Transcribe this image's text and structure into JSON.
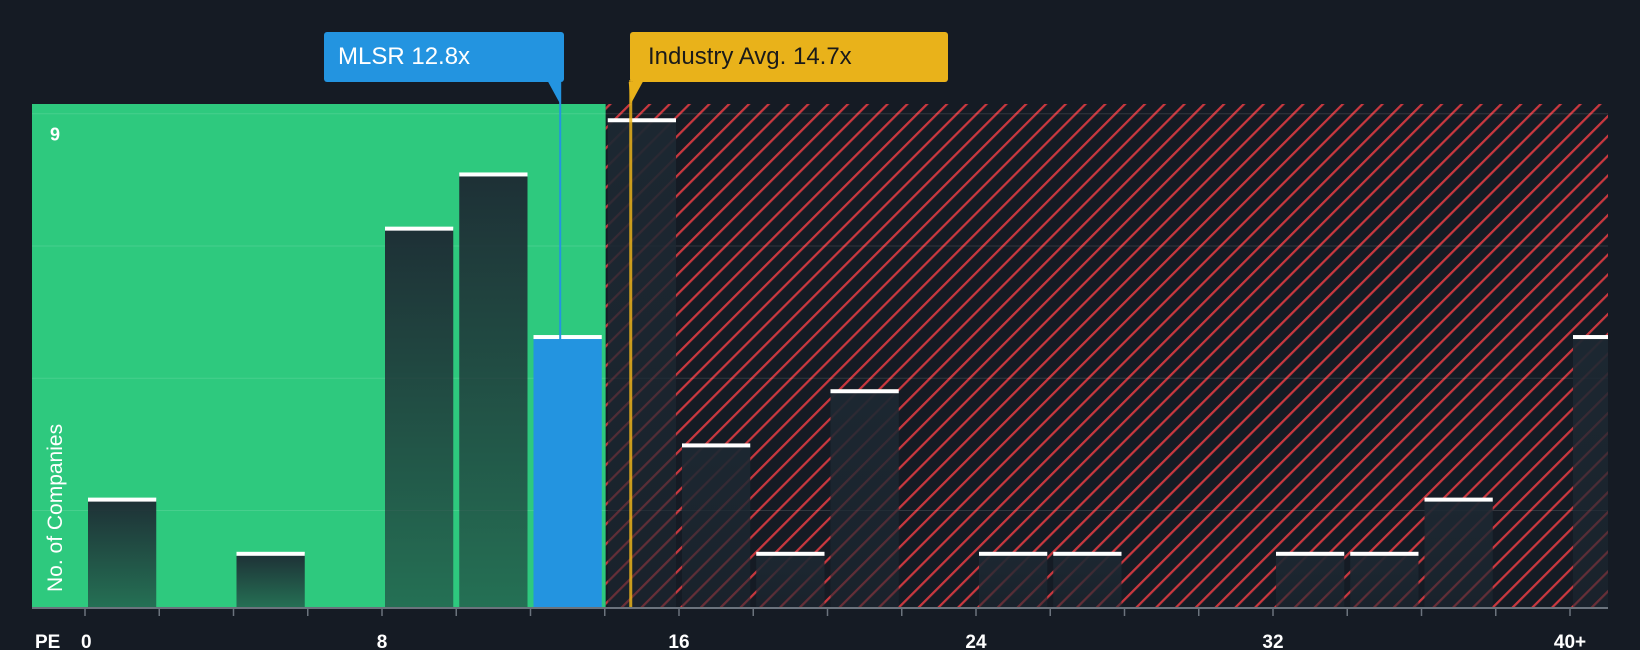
{
  "chart_data": {
    "type": "bar",
    "xlabel": "PE",
    "ylabel": "No. of Companies",
    "bins": [
      {
        "start": 0,
        "end": 2,
        "count": 2
      },
      {
        "start": 2,
        "end": 4,
        "count": 0
      },
      {
        "start": 4,
        "end": 6,
        "count": 1
      },
      {
        "start": 6,
        "end": 8,
        "count": 0
      },
      {
        "start": 8,
        "end": 10,
        "count": 7
      },
      {
        "start": 10,
        "end": 12,
        "count": 8
      },
      {
        "start": 12,
        "end": 14,
        "count": 5
      },
      {
        "start": 14,
        "end": 16,
        "count": 9
      },
      {
        "start": 16,
        "end": 18,
        "count": 3
      },
      {
        "start": 18,
        "end": 20,
        "count": 1
      },
      {
        "start": 20,
        "end": 22,
        "count": 4
      },
      {
        "start": 22,
        "end": 24,
        "count": 0
      },
      {
        "start": 24,
        "end": 26,
        "count": 1
      },
      {
        "start": 26,
        "end": 28,
        "count": 1
      },
      {
        "start": 28,
        "end": 30,
        "count": 0
      },
      {
        "start": 30,
        "end": 32,
        "count": 0
      },
      {
        "start": 32,
        "end": 34,
        "count": 1
      },
      {
        "start": 34,
        "end": 36,
        "count": 1
      },
      {
        "start": 36,
        "end": 38,
        "count": 2
      },
      {
        "start": 38,
        "end": 40,
        "count": 0
      },
      {
        "start": 40,
        "end": 42,
        "count": 5
      }
    ],
    "x_ticks": [
      {
        "value": 0,
        "label": "0"
      },
      {
        "value": 8,
        "label": "8"
      },
      {
        "value": 16,
        "label": "16"
      },
      {
        "value": 24,
        "label": "24"
      },
      {
        "value": 32,
        "label": "32"
      },
      {
        "value": 40,
        "label": "40+"
      }
    ],
    "y_ticks": [
      {
        "value": 9,
        "label": "9"
      }
    ],
    "xlim": [
      0,
      41
    ],
    "ylim": [
      0,
      9.3
    ],
    "company": {
      "label": "MLSR 12.8x",
      "value": 12.8,
      "bin_index": 6,
      "color": "#2394e0"
    },
    "industry_avg": {
      "label": "Industry Avg. 14.7x",
      "value": 14.7,
      "color": "#e9b21a"
    },
    "colors": {
      "background": "#151b24",
      "undervalued_zone": "#2ec97e",
      "overvalued_hatch": "#c9383f",
      "bar_dark": "#1d2630",
      "bar_cap": "#ffffff"
    }
  }
}
